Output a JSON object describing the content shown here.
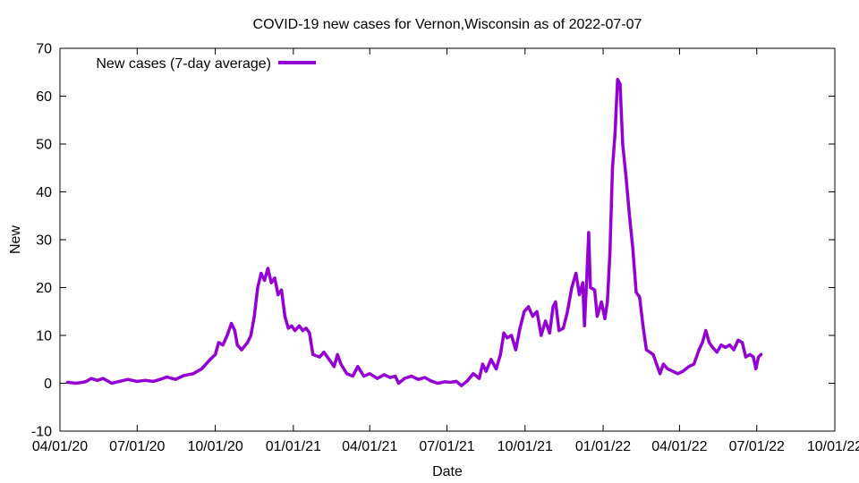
{
  "chart_data": {
    "type": "line",
    "title": "COVID-19 new cases for Vernon,Wisconsin as of 2022-07-07",
    "xlabel": "Date",
    "ylabel": "New",
    "xlim": [
      "2020-04-01",
      "2022-10-01"
    ],
    "ylim": [
      -10,
      70
    ],
    "x_ticks": [
      "04/01/20",
      "07/01/20",
      "10/01/20",
      "01/01/21",
      "04/01/21",
      "07/01/21",
      "10/01/21",
      "01/01/22",
      "04/01/22",
      "07/01/22",
      "10/01/22"
    ],
    "y_ticks": [
      -10,
      0,
      10,
      20,
      30,
      40,
      50,
      60,
      70
    ],
    "grid": false,
    "legend_position": "top-left",
    "series": [
      {
        "name": "New cases (7-day average)",
        "color": "#9400d3",
        "points": [
          [
            "2020-04-10",
            0.2
          ],
          [
            "2020-04-20",
            0.0
          ],
          [
            "2020-05-01",
            0.3
          ],
          [
            "2020-05-08",
            1.0
          ],
          [
            "2020-05-15",
            0.6
          ],
          [
            "2020-05-22",
            1.0
          ],
          [
            "2020-06-01",
            0.0
          ],
          [
            "2020-06-10",
            0.4
          ],
          [
            "2020-06-20",
            0.8
          ],
          [
            "2020-07-01",
            0.4
          ],
          [
            "2020-07-10",
            0.6
          ],
          [
            "2020-07-20",
            0.4
          ],
          [
            "2020-07-28",
            0.8
          ],
          [
            "2020-08-05",
            1.3
          ],
          [
            "2020-08-15",
            0.8
          ],
          [
            "2020-08-25",
            1.6
          ],
          [
            "2020-09-05",
            2.0
          ],
          [
            "2020-09-15",
            3.0
          ],
          [
            "2020-09-25",
            5.0
          ],
          [
            "2020-10-01",
            6.0
          ],
          [
            "2020-10-05",
            8.5
          ],
          [
            "2020-10-10",
            8.0
          ],
          [
            "2020-10-15",
            10.0
          ],
          [
            "2020-10-20",
            12.5
          ],
          [
            "2020-10-24",
            11.0
          ],
          [
            "2020-10-27",
            8.0
          ],
          [
            "2020-11-01",
            7.0
          ],
          [
            "2020-11-08",
            8.5
          ],
          [
            "2020-11-12",
            10.0
          ],
          [
            "2020-11-16",
            14.0
          ],
          [
            "2020-11-20",
            20.0
          ],
          [
            "2020-11-24",
            23.0
          ],
          [
            "2020-11-28",
            21.5
          ],
          [
            "2020-12-02",
            24.0
          ],
          [
            "2020-12-06",
            21.0
          ],
          [
            "2020-12-10",
            22.0
          ],
          [
            "2020-12-14",
            18.5
          ],
          [
            "2020-12-18",
            19.5
          ],
          [
            "2020-12-22",
            14.0
          ],
          [
            "2020-12-26",
            11.5
          ],
          [
            "2020-12-30",
            12.0
          ],
          [
            "2021-01-03",
            11.0
          ],
          [
            "2021-01-08",
            12.0
          ],
          [
            "2021-01-12",
            11.0
          ],
          [
            "2021-01-16",
            11.5
          ],
          [
            "2021-01-20",
            10.5
          ],
          [
            "2021-01-24",
            6.0
          ],
          [
            "2021-02-01",
            5.5
          ],
          [
            "2021-02-06",
            6.5
          ],
          [
            "2021-02-12",
            5.0
          ],
          [
            "2021-02-18",
            3.5
          ],
          [
            "2021-02-22",
            6.0
          ],
          [
            "2021-02-26",
            4.0
          ],
          [
            "2021-03-05",
            2.0
          ],
          [
            "2021-03-12",
            1.5
          ],
          [
            "2021-03-18",
            3.5
          ],
          [
            "2021-03-25",
            1.5
          ],
          [
            "2021-04-01",
            2.0
          ],
          [
            "2021-04-10",
            1.0
          ],
          [
            "2021-04-18",
            1.8
          ],
          [
            "2021-04-25",
            1.2
          ],
          [
            "2021-05-01",
            1.5
          ],
          [
            "2021-05-05",
            0.0
          ],
          [
            "2021-05-12",
            1.0
          ],
          [
            "2021-05-20",
            1.5
          ],
          [
            "2021-05-28",
            0.8
          ],
          [
            "2021-06-05",
            1.2
          ],
          [
            "2021-06-12",
            0.5
          ],
          [
            "2021-06-20",
            0.0
          ],
          [
            "2021-06-28",
            0.3
          ],
          [
            "2021-07-05",
            0.2
          ],
          [
            "2021-07-12",
            0.4
          ],
          [
            "2021-07-18",
            -0.5
          ],
          [
            "2021-07-25",
            0.5
          ],
          [
            "2021-08-01",
            2.0
          ],
          [
            "2021-08-08",
            1.0
          ],
          [
            "2021-08-12",
            4.0
          ],
          [
            "2021-08-16",
            2.5
          ],
          [
            "2021-08-22",
            5.0
          ],
          [
            "2021-08-28",
            3.0
          ],
          [
            "2021-09-02",
            6.0
          ],
          [
            "2021-09-06",
            10.5
          ],
          [
            "2021-09-10",
            9.5
          ],
          [
            "2021-09-15",
            10.0
          ],
          [
            "2021-09-20",
            7.0
          ],
          [
            "2021-09-25",
            11.5
          ],
          [
            "2021-09-30",
            15.0
          ],
          [
            "2021-10-05",
            16.0
          ],
          [
            "2021-10-10",
            14.0
          ],
          [
            "2021-10-15",
            15.0
          ],
          [
            "2021-10-20",
            10.0
          ],
          [
            "2021-10-25",
            13.0
          ],
          [
            "2021-10-30",
            10.5
          ],
          [
            "2021-11-03",
            16.0
          ],
          [
            "2021-11-06",
            17.0
          ],
          [
            "2021-11-10",
            11.0
          ],
          [
            "2021-11-15",
            11.5
          ],
          [
            "2021-11-20",
            15.0
          ],
          [
            "2021-11-25",
            20.0
          ],
          [
            "2021-11-30",
            23.0
          ],
          [
            "2021-12-04",
            18.5
          ],
          [
            "2021-12-08",
            21.0
          ],
          [
            "2021-12-10",
            12.0
          ],
          [
            "2021-12-13",
            23.0
          ],
          [
            "2021-12-15",
            31.5
          ],
          [
            "2021-12-17",
            20.0
          ],
          [
            "2021-12-22",
            19.5
          ],
          [
            "2021-12-25",
            14.0
          ],
          [
            "2021-12-30",
            17.0
          ],
          [
            "2022-01-03",
            13.5
          ],
          [
            "2022-01-06",
            17.0
          ],
          [
            "2022-01-09",
            27.0
          ],
          [
            "2022-01-12",
            45.0
          ],
          [
            "2022-01-15",
            52.0
          ],
          [
            "2022-01-18",
            63.5
          ],
          [
            "2022-01-21",
            62.5
          ],
          [
            "2022-01-24",
            50.0
          ],
          [
            "2022-01-28",
            43.0
          ],
          [
            "2022-02-01",
            35.0
          ],
          [
            "2022-02-05",
            28.0
          ],
          [
            "2022-02-09",
            19.0
          ],
          [
            "2022-02-13",
            18.0
          ],
          [
            "2022-02-17",
            12.0
          ],
          [
            "2022-02-21",
            7.0
          ],
          [
            "2022-02-25",
            6.5
          ],
          [
            "2022-03-01",
            6.0
          ],
          [
            "2022-03-05",
            4.0
          ],
          [
            "2022-03-09",
            2.0
          ],
          [
            "2022-03-13",
            4.0
          ],
          [
            "2022-03-18",
            3.0
          ],
          [
            "2022-03-24",
            2.5
          ],
          [
            "2022-03-30",
            2.0
          ],
          [
            "2022-04-05",
            2.5
          ],
          [
            "2022-04-12",
            3.5
          ],
          [
            "2022-04-18",
            4.0
          ],
          [
            "2022-04-24",
            7.0
          ],
          [
            "2022-04-28",
            8.5
          ],
          [
            "2022-05-02",
            11.0
          ],
          [
            "2022-05-06",
            8.5
          ],
          [
            "2022-05-10",
            7.5
          ],
          [
            "2022-05-15",
            6.5
          ],
          [
            "2022-05-20",
            8.0
          ],
          [
            "2022-05-25",
            7.5
          ],
          [
            "2022-05-30",
            8.0
          ],
          [
            "2022-06-04",
            7.0
          ],
          [
            "2022-06-09",
            9.0
          ],
          [
            "2022-06-14",
            8.5
          ],
          [
            "2022-06-18",
            5.5
          ],
          [
            "2022-06-23",
            6.0
          ],
          [
            "2022-06-27",
            5.5
          ],
          [
            "2022-06-30",
            3.0
          ],
          [
            "2022-07-03",
            5.5
          ],
          [
            "2022-07-06",
            6.0
          ]
        ]
      }
    ]
  }
}
